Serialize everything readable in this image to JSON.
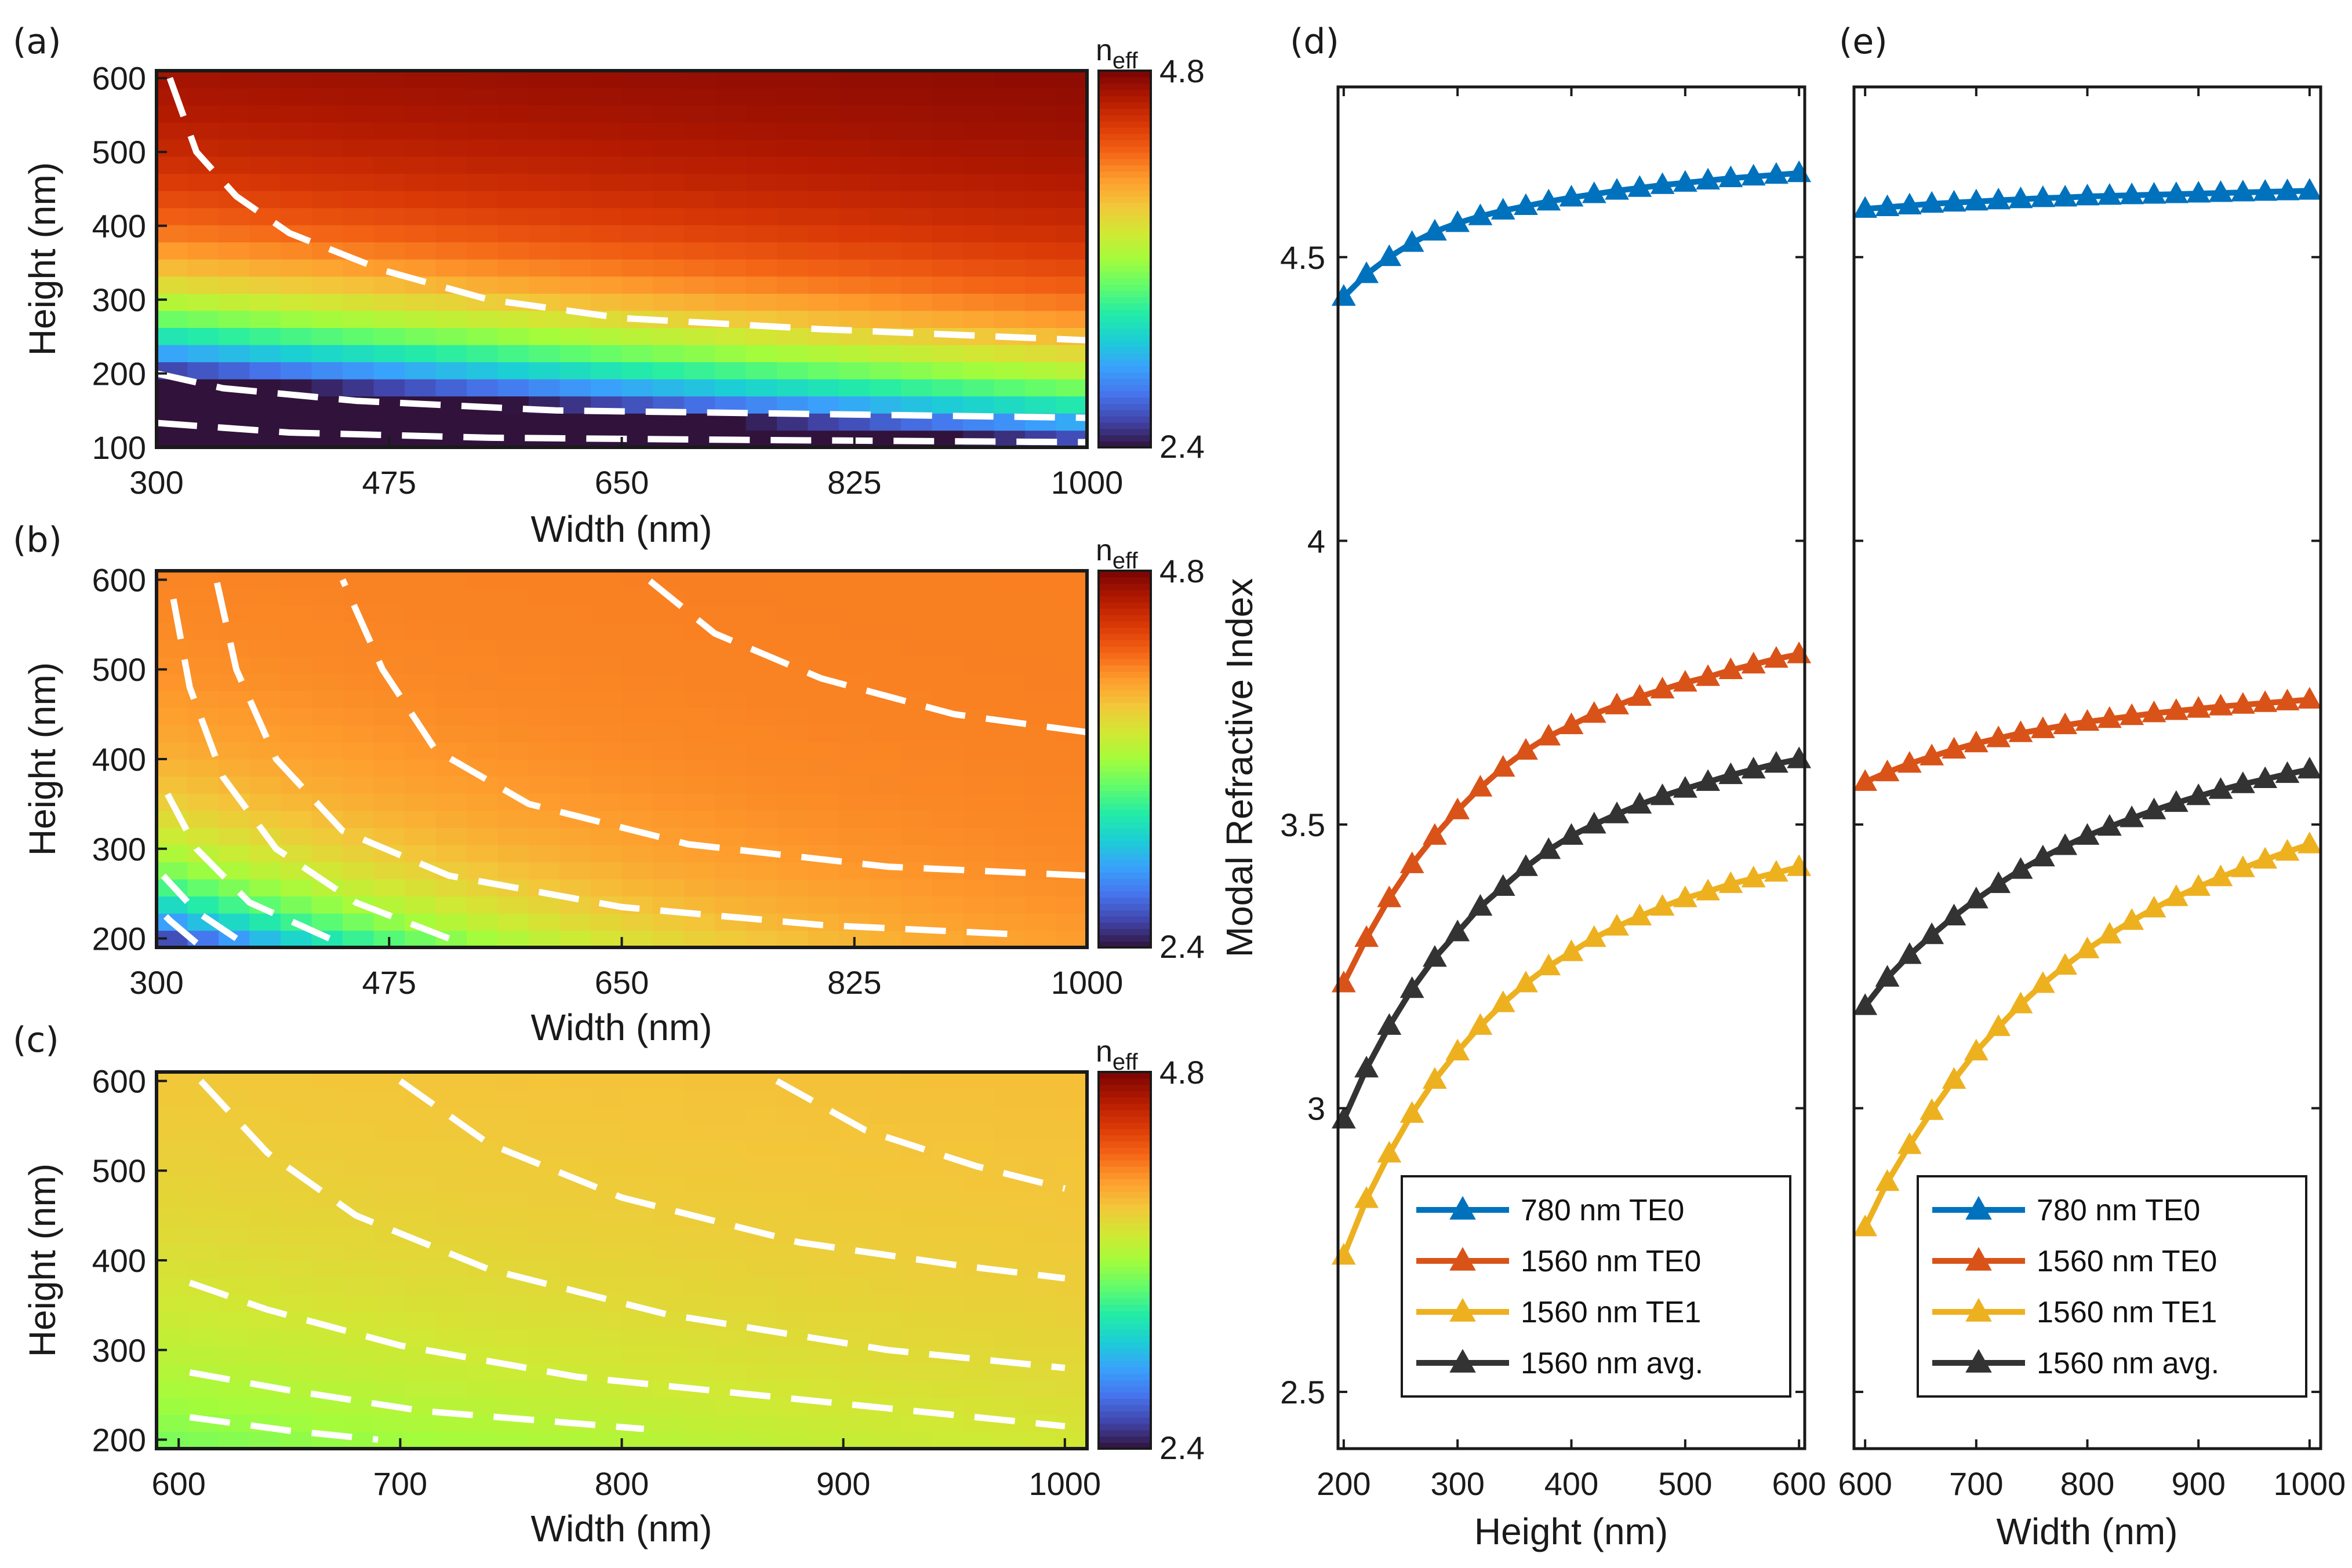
{
  "colormap": [
    "#30123b",
    "#4145ab",
    "#4675ed",
    "#39a2fc",
    "#1bcfd4",
    "#24eca6",
    "#61fc6c",
    "#a4fc3b",
    "#d1e834",
    "#f3c63a",
    "#fe9b2d",
    "#f36315",
    "#d93806",
    "#b11901",
    "#7a0403"
  ],
  "chart_data": [
    {
      "panel": "(a)",
      "type": "heatmap",
      "xlabel": "Width (nm)",
      "ylabel": "Height (nm)",
      "xlim": [
        300,
        1000
      ],
      "ylim": [
        100,
        610
      ],
      "xticks": [
        "300",
        "475",
        "650",
        "825",
        "1000"
      ],
      "yticks": [
        "100",
        "200",
        "300",
        "400",
        "500",
        "600"
      ],
      "colorbar": {
        "title": "n",
        "subscript": "eff",
        "min": 2.4,
        "max": 4.8,
        "min_label": "2.4",
        "max_label": "4.8"
      },
      "model": {
        "a": 4.8,
        "b": 4.75,
        "p": 0.72,
        "q": 0.3
      },
      "contours": [
        {
          "points": [
            [
              310,
              600
            ],
            [
              330,
              500
            ],
            [
              360,
              440
            ],
            [
              400,
              390
            ],
            [
              470,
              340
            ],
            [
              550,
              300
            ],
            [
              650,
              275
            ],
            [
              800,
              260
            ],
            [
              1000,
              245
            ]
          ]
        },
        {
          "points": [
            [
              300,
              200
            ],
            [
              350,
              180
            ],
            [
              450,
              163
            ],
            [
              600,
              150
            ],
            [
              800,
              145
            ],
            [
              1000,
              140
            ]
          ]
        },
        {
          "points": [
            [
              300,
              133
            ],
            [
              400,
              120
            ],
            [
              550,
              113
            ],
            [
              750,
              110
            ],
            [
              1000,
              107
            ]
          ]
        }
      ]
    },
    {
      "panel": "(b)",
      "type": "heatmap",
      "xlabel": "Width (nm)",
      "ylabel": "Height (nm)",
      "xlim": [
        300,
        1000
      ],
      "ylim": [
        190,
        610
      ],
      "xticks": [
        "300",
        "475",
        "650",
        "825",
        "1000"
      ],
      "yticks": [
        "200",
        "300",
        "400",
        "500",
        "600"
      ],
      "colorbar": {
        "title": "n",
        "subscript": "eff",
        "min": 2.4,
        "max": 4.8,
        "min_label": "2.4",
        "max_label": "4.8"
      },
      "model": {
        "a": 4.2,
        "b": 5.0,
        "p": 1.1,
        "q": 1.25
      },
      "contours": [
        {
          "points": [
            [
              330,
              195
            ],
            [
              310,
              220
            ],
            [
              300,
              235
            ]
          ]
        },
        {
          "points": [
            [
              360,
              200
            ],
            [
              330,
              230
            ],
            [
              305,
              270
            ]
          ]
        },
        {
          "points": [
            [
              430,
              200
            ],
            [
              370,
              240
            ],
            [
              330,
              300
            ],
            [
              305,
              370
            ]
          ]
        },
        {
          "points": [
            [
              520,
              200
            ],
            [
              450,
              240
            ],
            [
              390,
              300
            ],
            [
              350,
              380
            ],
            [
              325,
              480
            ],
            [
              310,
              600
            ]
          ]
        },
        {
          "points": [
            [
              940,
              205
            ],
            [
              800,
              215
            ],
            [
              650,
              235
            ],
            [
              520,
              270
            ],
            [
              440,
              320
            ],
            [
              390,
              400
            ],
            [
              360,
              500
            ],
            [
              345,
              600
            ]
          ]
        },
        {
          "points": [
            [
              1000,
              270
            ],
            [
              850,
              280
            ],
            [
              700,
              305
            ],
            [
              580,
              350
            ],
            [
              510,
              410
            ],
            [
              470,
              500
            ],
            [
              440,
              600
            ]
          ]
        },
        {
          "points": [
            [
              1000,
              430
            ],
            [
              900,
              450
            ],
            [
              800,
              490
            ],
            [
              720,
              540
            ],
            [
              670,
              600
            ]
          ]
        }
      ]
    },
    {
      "panel": "(c)",
      "type": "heatmap",
      "xlabel": "Width (nm)",
      "ylabel": "Height (nm)",
      "xlim": [
        590,
        1010
      ],
      "ylim": [
        190,
        610
      ],
      "xticks": [
        "600",
        "700",
        "800",
        "900",
        "1000"
      ],
      "yticks": [
        "200",
        "300",
        "400",
        "500",
        "600"
      ],
      "colorbar": {
        "title": "n",
        "subscript": "eff",
        "min": 2.4,
        "max": 4.8,
        "min_label": "2.4",
        "max_label": "4.8"
      },
      "model": {
        "a": 4.0,
        "b": 1.5,
        "p": 0.5,
        "q": 0.6
      },
      "contours": [
        {
          "points": [
            [
              605,
              225
            ],
            [
              650,
              210
            ],
            [
              690,
              200
            ]
          ]
        },
        {
          "points": [
            [
              605,
              275
            ],
            [
              650,
              255
            ],
            [
              710,
              232
            ],
            [
              810,
              212
            ]
          ]
        },
        {
          "points": [
            [
              605,
              375
            ],
            [
              640,
              345
            ],
            [
              700,
              305
            ],
            [
              780,
              270
            ],
            [
              900,
              240
            ],
            [
              1000,
              215
            ]
          ]
        },
        {
          "points": [
            [
              610,
              600
            ],
            [
              640,
              520
            ],
            [
              680,
              450
            ],
            [
              740,
              390
            ],
            [
              820,
              340
            ],
            [
              920,
              300
            ],
            [
              1000,
              280
            ]
          ]
        },
        {
          "points": [
            [
              700,
              600
            ],
            [
              740,
              530
            ],
            [
              800,
              470
            ],
            [
              880,
              420
            ],
            [
              950,
              395
            ],
            [
              1000,
              380
            ]
          ]
        },
        {
          "points": [
            [
              870,
              600
            ],
            [
              910,
              545
            ],
            [
              960,
              505
            ],
            [
              1000,
              480
            ]
          ]
        }
      ]
    },
    {
      "panel": "(d)",
      "type": "line",
      "xlabel": "Height (nm)",
      "ylabel": "Modal Refractive Index",
      "xlim": [
        195,
        605
      ],
      "ylim": [
        2.4,
        4.8
      ],
      "xticks": [
        "200",
        "300",
        "400",
        "500",
        "600"
      ],
      "yticks": [
        "2.5",
        "3",
        "3.5",
        "4",
        "4.5"
      ],
      "x": [
        200,
        220,
        240,
        260,
        280,
        300,
        320,
        340,
        360,
        380,
        400,
        420,
        440,
        460,
        480,
        500,
        520,
        540,
        560,
        580,
        600
      ],
      "series": [
        {
          "name": "780 nm TE0",
          "color": "#0072bd",
          "values": [
            4.43,
            4.47,
            4.5,
            4.525,
            4.545,
            4.56,
            4.572,
            4.582,
            4.59,
            4.598,
            4.605,
            4.611,
            4.617,
            4.622,
            4.627,
            4.631,
            4.635,
            4.639,
            4.642,
            4.645,
            4.648
          ]
        },
        {
          "name": "1560 nm TE0",
          "color": "#d95319",
          "values": [
            3.22,
            3.3,
            3.37,
            3.43,
            3.48,
            3.525,
            3.565,
            3.6,
            3.63,
            3.655,
            3.675,
            3.695,
            3.71,
            3.725,
            3.738,
            3.75,
            3.76,
            3.772,
            3.782,
            3.792,
            3.8
          ]
        },
        {
          "name": "1560 nm TE1",
          "color": "#edb120",
          "values": [
            2.74,
            2.84,
            2.92,
            2.99,
            3.05,
            3.1,
            3.145,
            3.185,
            3.22,
            3.25,
            3.275,
            3.3,
            3.32,
            3.338,
            3.355,
            3.37,
            3.382,
            3.395,
            3.405,
            3.415,
            3.425
          ]
        },
        {
          "name": "1560 nm avg.",
          "color": "#333333",
          "values": [
            2.98,
            3.07,
            3.145,
            3.21,
            3.265,
            3.31,
            3.355,
            3.39,
            3.425,
            3.455,
            3.48,
            3.5,
            3.518,
            3.535,
            3.55,
            3.563,
            3.575,
            3.587,
            3.597,
            3.607,
            3.615
          ]
        }
      ]
    },
    {
      "panel": "(e)",
      "type": "line",
      "xlabel": "Width (nm)",
      "ylabel": "",
      "xlim": [
        590,
        1010
      ],
      "ylim": [
        2.4,
        4.8
      ],
      "xticks": [
        "600",
        "700",
        "800",
        "900",
        "1000"
      ],
      "yticks": [],
      "x": [
        600,
        620,
        640,
        660,
        680,
        700,
        720,
        740,
        760,
        780,
        800,
        820,
        840,
        860,
        880,
        900,
        920,
        940,
        960,
        980,
        1000
      ],
      "series": [
        {
          "name": "780 nm TE0",
          "color": "#0072bd",
          "values": [
            4.585,
            4.588,
            4.591,
            4.594,
            4.596,
            4.598,
            4.6,
            4.602,
            4.604,
            4.605,
            4.607,
            4.608,
            4.609,
            4.61,
            4.611,
            4.612,
            4.613,
            4.614,
            4.615,
            4.616,
            4.617
          ]
        },
        {
          "name": "1560 nm TE0",
          "color": "#d95319",
          "values": [
            3.575,
            3.592,
            3.607,
            3.62,
            3.632,
            3.643,
            3.652,
            3.661,
            3.668,
            3.675,
            3.681,
            3.686,
            3.691,
            3.696,
            3.7,
            3.704,
            3.708,
            3.711,
            3.714,
            3.717,
            3.72
          ]
        },
        {
          "name": "1560 nm TE1",
          "color": "#edb120",
          "values": [
            2.79,
            2.87,
            2.935,
            2.995,
            3.05,
            3.1,
            3.143,
            3.183,
            3.219,
            3.251,
            3.28,
            3.306,
            3.33,
            3.352,
            3.372,
            3.39,
            3.407,
            3.423,
            3.438,
            3.452,
            3.465
          ]
        },
        {
          "name": "1560 nm avg.",
          "color": "#333333",
          "values": [
            3.18,
            3.23,
            3.27,
            3.305,
            3.338,
            3.368,
            3.395,
            3.42,
            3.442,
            3.462,
            3.48,
            3.496,
            3.511,
            3.525,
            3.538,
            3.55,
            3.561,
            3.571,
            3.58,
            3.589,
            3.597
          ]
        }
      ]
    }
  ]
}
